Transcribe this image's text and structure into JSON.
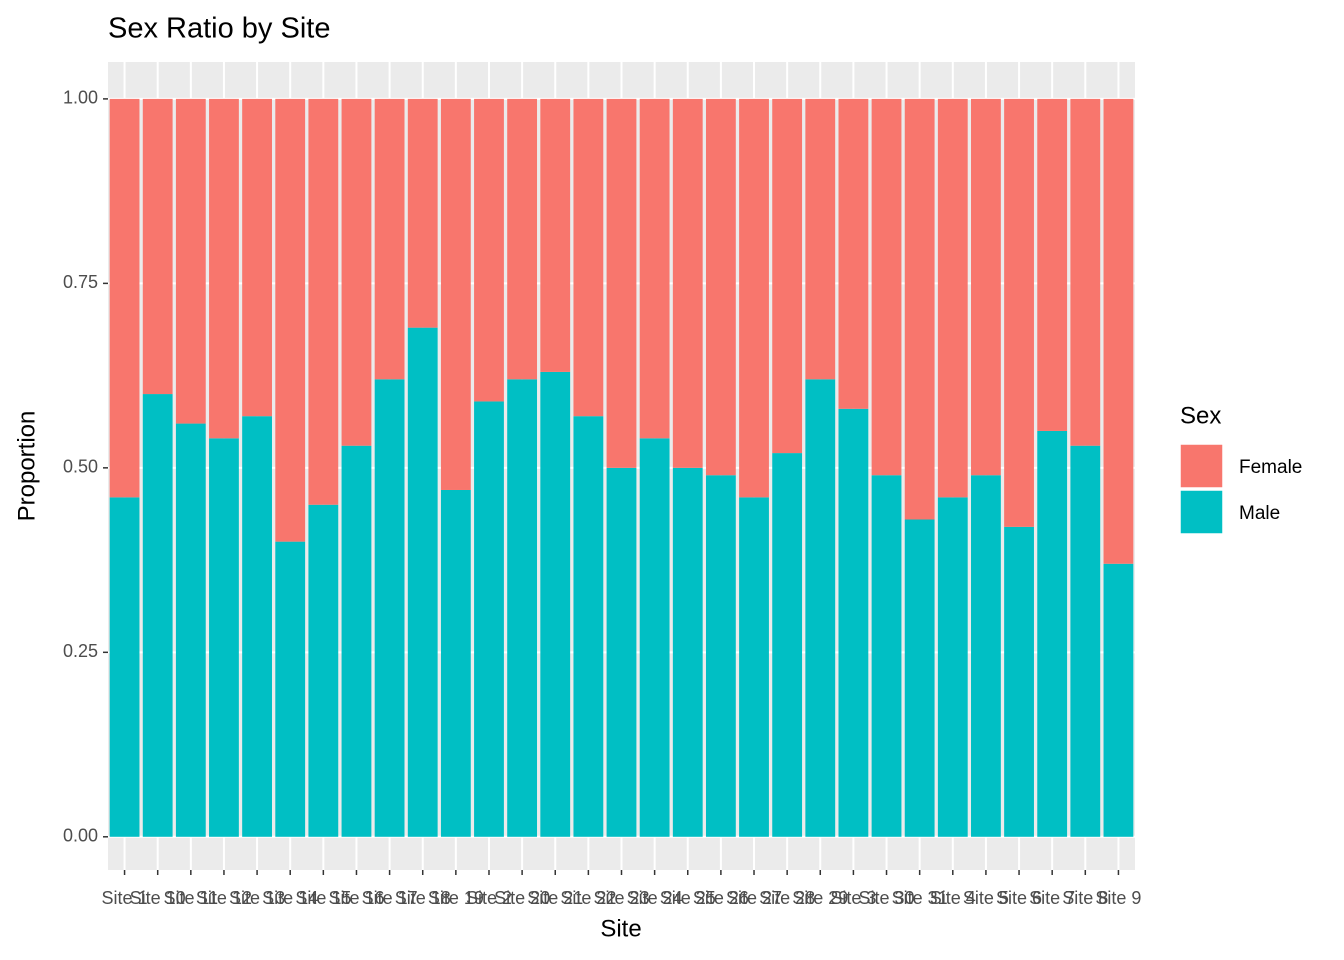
{
  "chart_data": {
    "type": "bar",
    "stacked": true,
    "title": "Sex Ratio by Site",
    "xlabel": "Site",
    "ylabel": "Proportion",
    "legend_title": "Sex",
    "legend": "right",
    "categories": [
      "Site 1",
      "Site 10",
      "Site 11",
      "Site 12",
      "Site 13",
      "Site 14",
      "Site 15",
      "Site 16",
      "Site 17",
      "Site 18",
      "Site 19",
      "Site 2",
      "Site 20",
      "Site 21",
      "Site 22",
      "Site 23",
      "Site 24",
      "Site 25",
      "Site 26",
      "Site 27",
      "Site 28",
      "Site 29",
      "Site 3",
      "Site 30",
      "Site 31",
      "Site 4",
      "Site 5",
      "Site 6",
      "Site 7",
      "Site 8",
      "Site 9"
    ],
    "series": [
      {
        "name": "Female",
        "color": "#F8766D",
        "values": [
          0.54,
          0.4,
          0.44,
          0.46,
          0.43,
          0.6,
          0.55,
          0.47,
          0.38,
          0.31,
          0.53,
          0.41,
          0.38,
          0.37,
          0.43,
          0.5,
          0.46,
          0.5,
          0.51,
          0.54,
          0.48,
          0.38,
          0.42,
          0.51,
          0.57,
          0.54,
          0.51,
          0.58,
          0.45,
          0.47,
          0.63
        ]
      },
      {
        "name": "Male",
        "color": "#00BFC4",
        "values": [
          0.46,
          0.6,
          0.56,
          0.54,
          0.57,
          0.4,
          0.45,
          0.53,
          0.62,
          0.69,
          0.47,
          0.59,
          0.62,
          0.63,
          0.57,
          0.5,
          0.54,
          0.5,
          0.49,
          0.46,
          0.52,
          0.62,
          0.58,
          0.49,
          0.43,
          0.46,
          0.49,
          0.42,
          0.55,
          0.53,
          0.37
        ]
      }
    ],
    "ylim": [
      -0.045,
      1.05
    ],
    "yticks": [
      {
        "value": 0,
        "label": "0.00"
      },
      {
        "value": 0.25,
        "label": "0.25"
      },
      {
        "value": 0.5,
        "label": "0.50"
      },
      {
        "value": 0.75,
        "label": "0.75"
      },
      {
        "value": 1,
        "label": "1.00"
      }
    ],
    "grid": true
  }
}
